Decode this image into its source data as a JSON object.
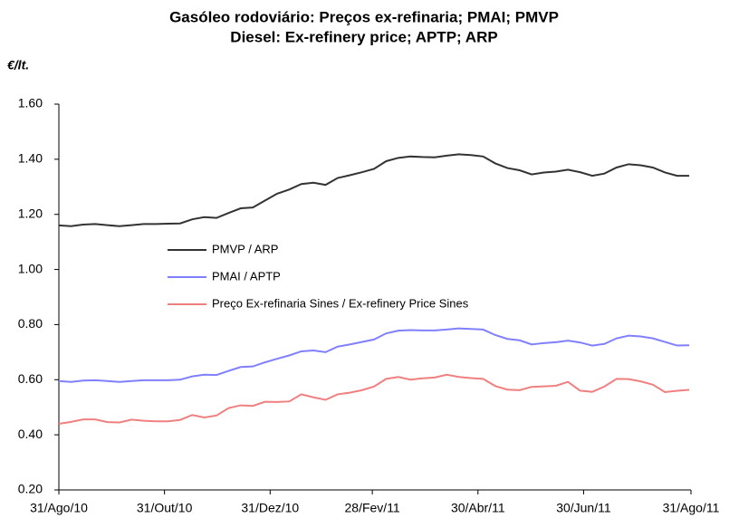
{
  "chart_data": {
    "type": "line",
    "title": "Gasóleo rodoviário: Preços ex-refinaria; PMAI; PMVP",
    "subtitle": "Diesel: Ex-refinery price; APTP; ARP",
    "y_label": "€/lt.",
    "x": [
      0,
      7,
      14,
      21,
      28,
      35,
      42,
      49,
      56,
      63,
      70,
      77,
      84,
      91,
      98,
      105,
      112,
      119,
      126,
      133,
      140,
      147,
      154,
      161,
      168,
      175,
      182,
      189,
      196,
      203,
      210,
      217,
      224,
      231,
      238,
      245,
      252,
      259,
      266,
      273,
      280,
      287,
      294,
      301,
      308,
      315,
      322,
      329,
      336,
      343,
      350,
      357,
      364
    ],
    "xlim": [
      0,
      365
    ],
    "xticks": [
      {
        "value": 0,
        "label": "31/Ago/10"
      },
      {
        "value": 61,
        "label": "31/Out/10"
      },
      {
        "value": 122,
        "label": "31/Dez/10"
      },
      {
        "value": 181,
        "label": "28/Fev/11"
      },
      {
        "value": 242,
        "label": "30/Abr/11"
      },
      {
        "value": 303,
        "label": "30/Jun/11"
      },
      {
        "value": 365,
        "label": "31/Ago/11"
      }
    ],
    "ylim": [
      0.2,
      1.6
    ],
    "yticks": [
      {
        "value": 0.2,
        "label": "0.20"
      },
      {
        "value": 0.4,
        "label": "0.40"
      },
      {
        "value": 0.6,
        "label": "0.60"
      },
      {
        "value": 0.8,
        "label": "0.80"
      },
      {
        "value": 1.0,
        "label": "1.00"
      },
      {
        "value": 1.2,
        "label": "1.20"
      },
      {
        "value": 1.4,
        "label": "1.40"
      },
      {
        "value": 1.6,
        "label": "1.60"
      }
    ],
    "grid": false,
    "legend": "center-left",
    "series": [
      {
        "name": "PMVP / ARP",
        "color": "#333333",
        "values": [
          1.16,
          1.157,
          1.163,
          1.165,
          1.161,
          1.157,
          1.161,
          1.165,
          1.165,
          1.166,
          1.167,
          1.182,
          1.19,
          1.187,
          1.205,
          1.222,
          1.225,
          1.25,
          1.275,
          1.29,
          1.31,
          1.315,
          1.307,
          1.332,
          1.342,
          1.353,
          1.365,
          1.393,
          1.405,
          1.41,
          1.408,
          1.407,
          1.413,
          1.418,
          1.415,
          1.41,
          1.385,
          1.368,
          1.36,
          1.345,
          1.352,
          1.355,
          1.362,
          1.353,
          1.34,
          1.348,
          1.37,
          1.382,
          1.378,
          1.37,
          1.352,
          1.34,
          1.34
        ]
      },
      {
        "name": "PMAI / APTP",
        "color": "#8080ff",
        "values": [
          0.595,
          0.592,
          0.597,
          0.598,
          0.595,
          0.592,
          0.595,
          0.598,
          0.598,
          0.598,
          0.6,
          0.612,
          0.618,
          0.617,
          0.632,
          0.646,
          0.648,
          0.663,
          0.676,
          0.688,
          0.703,
          0.706,
          0.7,
          0.72,
          0.728,
          0.737,
          0.746,
          0.768,
          0.778,
          0.78,
          0.779,
          0.779,
          0.782,
          0.786,
          0.784,
          0.782,
          0.762,
          0.748,
          0.743,
          0.728,
          0.733,
          0.736,
          0.742,
          0.735,
          0.724,
          0.73,
          0.75,
          0.76,
          0.757,
          0.75,
          0.737,
          0.724,
          0.725
        ]
      },
      {
        "name": "Preço Ex-refinaria Sines / Ex-refinery Price Sines",
        "color": "#f08080",
        "values": [
          0.44,
          0.447,
          0.456,
          0.456,
          0.446,
          0.445,
          0.455,
          0.451,
          0.449,
          0.449,
          0.454,
          0.472,
          0.463,
          0.47,
          0.497,
          0.507,
          0.505,
          0.52,
          0.519,
          0.521,
          0.547,
          0.536,
          0.527,
          0.547,
          0.553,
          0.562,
          0.575,
          0.603,
          0.61,
          0.6,
          0.605,
          0.608,
          0.618,
          0.61,
          0.606,
          0.603,
          0.577,
          0.564,
          0.562,
          0.574,
          0.576,
          0.578,
          0.592,
          0.56,
          0.556,
          0.575,
          0.603,
          0.602,
          0.594,
          0.582,
          0.555,
          0.56,
          0.563
        ]
      }
    ]
  }
}
